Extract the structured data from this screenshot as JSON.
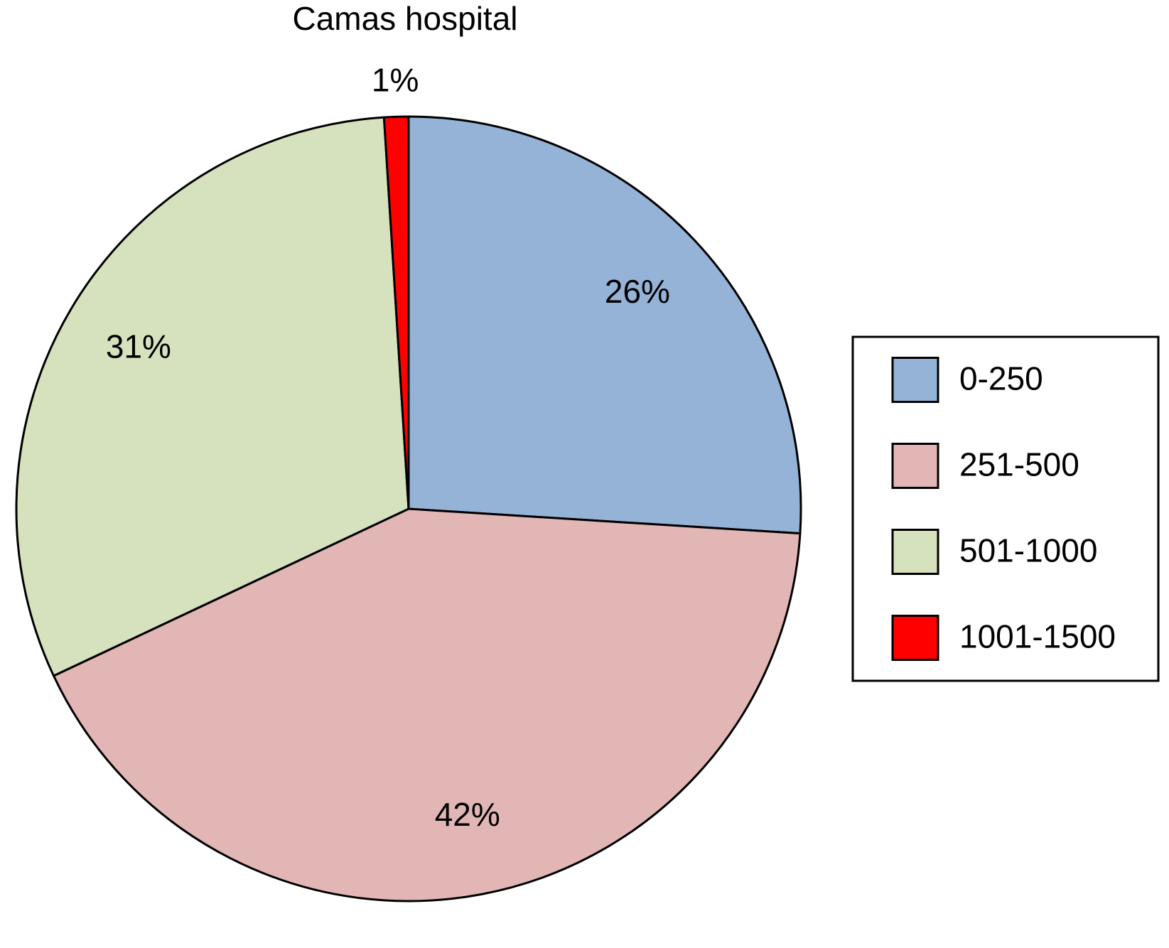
{
  "chart_data": {
    "type": "pie",
    "title": "Camas hospital",
    "categories": [
      "0-250",
      "251-500",
      "501-1000",
      "1001-1500"
    ],
    "values": [
      26,
      42,
      31,
      1
    ],
    "value_labels": [
      "26%",
      "42%",
      "31%",
      "1%"
    ],
    "colors": [
      "#95b3d7",
      "#e3b6b6",
      "#d6e2bd",
      "#ff0000"
    ],
    "legend": "right"
  }
}
